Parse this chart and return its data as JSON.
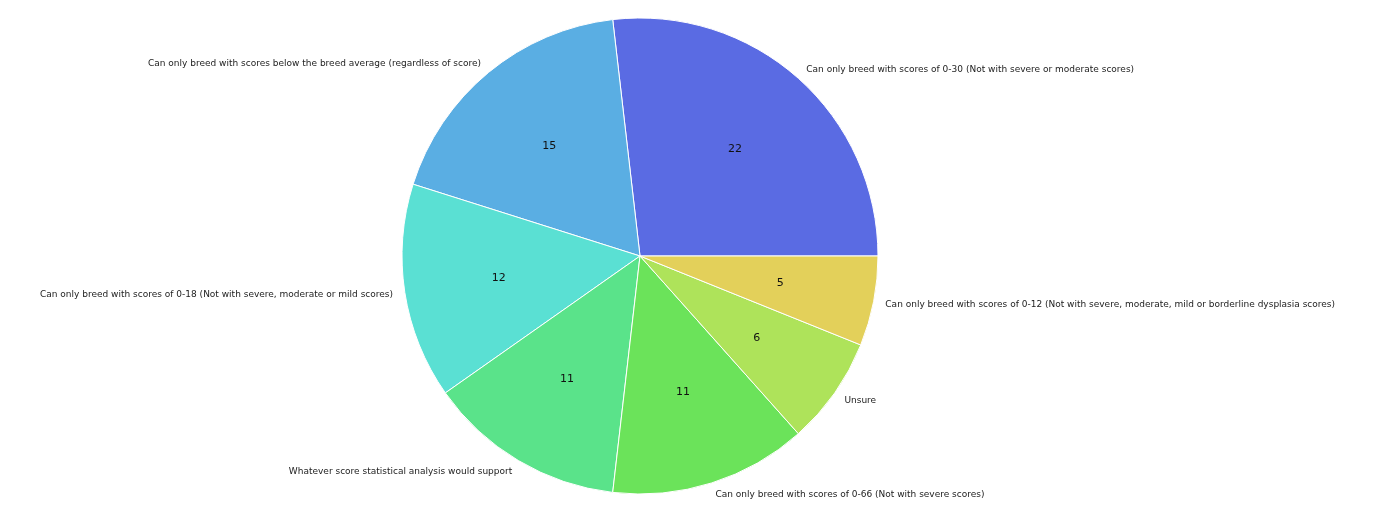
{
  "chart_data": {
    "type": "pie",
    "categories": [
      "Can only breed with scores of 0-30 (Not with severe or moderate scores)",
      "Can only breed with scores below the breed average (regardless of score)",
      "Can only breed with scores of 0-18 (Not with severe, moderate or mild scores)",
      "Whatever score statistical analysis would support",
      "Can only breed with scores of 0-66 (Not with severe scores)",
      "Unsure",
      "Can only breed with scores of 0-12 (Not with severe, moderate, mild or borderline dysplasia scores)"
    ],
    "values": [
      22,
      15,
      12,
      11,
      11,
      6,
      5
    ],
    "colors": [
      "#5a6be3",
      "#5aaee3",
      "#5ae0d3",
      "#5ae38a",
      "#6be35a",
      "#aee35a",
      "#e3d05a"
    ],
    "data_labels": true
  }
}
